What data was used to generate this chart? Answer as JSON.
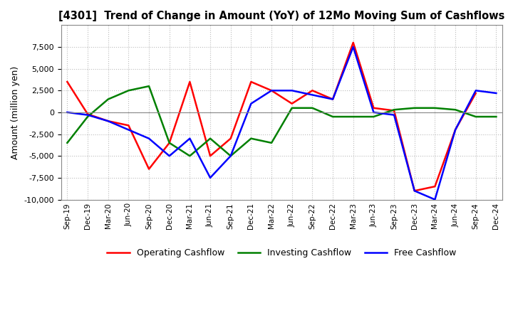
{
  "title": "[4301]  Trend of Change in Amount (YoY) of 12Mo Moving Sum of Cashflows",
  "ylabel": "Amount (million yen)",
  "x_labels": [
    "Sep-19",
    "Dec-19",
    "Mar-20",
    "Jun-20",
    "Sep-20",
    "Dec-20",
    "Mar-21",
    "Jun-21",
    "Sep-21",
    "Dec-21",
    "Mar-22",
    "Jun-22",
    "Sep-22",
    "Dec-22",
    "Mar-23",
    "Jun-23",
    "Sep-23",
    "Dec-23",
    "Mar-24",
    "Jun-24",
    "Sep-24",
    "Dec-24"
  ],
  "operating": [
    3500,
    -200,
    -1000,
    -1500,
    -6500,
    -3500,
    3500,
    -5000,
    -3000,
    3500,
    2500,
    1000,
    2500,
    1500,
    8000,
    500,
    200,
    -9000,
    -8500,
    -2000,
    2200,
    null
  ],
  "investing": [
    -3500,
    -500,
    1500,
    2500,
    3000,
    -3500,
    -5000,
    -3000,
    -5000,
    -3000,
    -3500,
    500,
    500,
    -500,
    -500,
    -500,
    300,
    500,
    500,
    300,
    -500,
    -500
  ],
  "free": [
    0,
    -300,
    -1000,
    -2000,
    -3000,
    -5000,
    -3000,
    -7500,
    -5000,
    1000,
    2500,
    2500,
    2000,
    1500,
    7500,
    0,
    -300,
    -9000,
    -10000,
    -2000,
    2500,
    2200
  ],
  "ylim": [
    -10000,
    10000
  ],
  "yticks": [
    -10000,
    -7500,
    -5000,
    -2500,
    0,
    2500,
    5000,
    7500
  ],
  "operating_color": "#FF0000",
  "investing_color": "#008000",
  "free_color": "#0000FF",
  "background_color": "#FFFFFF",
  "grid_color": "#AAAAAA"
}
